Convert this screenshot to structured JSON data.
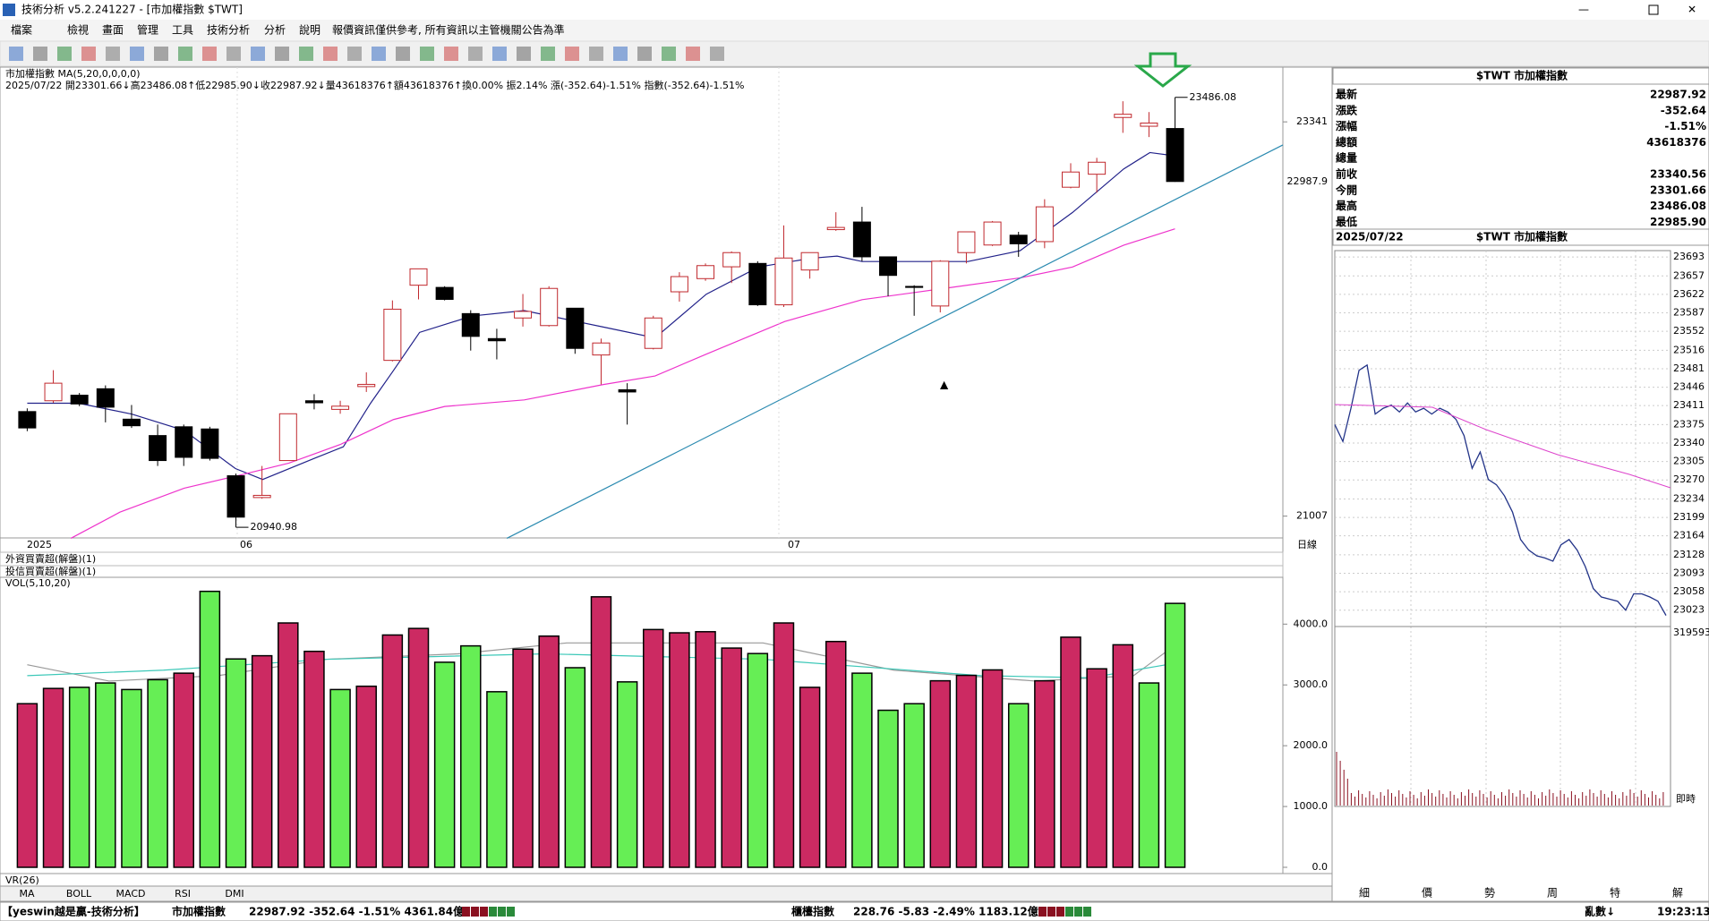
{
  "window": {
    "title": "技術分析 v5.2.241227 - [市加權指數 $TWT]"
  },
  "menu": [
    "檔案",
    "檢視",
    "畫面",
    "管理",
    "工具",
    "技術分析",
    "分析",
    "說明",
    "報價資訊僅供參考, 所有資訊以主管機關公告為準"
  ],
  "chart_data": {
    "type": "candlestick",
    "title": "市加權指數 MA(5,20,0,0,0,0)",
    "subtitle": "2025/07/22 開23301.66↓高23486.08↑低22985.90↓收22987.92↓量43618376↑額43618376↑換0.00% 振2.14% 漲(-352.64)-1.51% 指數(-352.64)-1.51%",
    "ylim": [
      20878,
      23612
    ],
    "yticks": [
      21007,
      23341
    ],
    "last_label": "22987.9",
    "x_labels": [
      "2025",
      "06",
      "07"
    ],
    "period": "日線",
    "annotations": [
      "23486.08",
      "20940.98"
    ],
    "candles": [
      {
        "open": 21626,
        "close": 21529,
        "high": 21645,
        "low": 21510
      },
      {
        "open": 21690,
        "close": 21794,
        "high": 21871,
        "low": 21678
      },
      {
        "open": 21723,
        "close": 21671,
        "high": 21736,
        "low": 21658
      },
      {
        "open": 21761,
        "close": 21652,
        "high": 21781,
        "low": 21562
      },
      {
        "open": 21581,
        "close": 21542,
        "high": 21665,
        "low": 21529
      },
      {
        "open": 21484,
        "close": 21336,
        "high": 21549,
        "low": 21304
      },
      {
        "open": 21536,
        "close": 21355,
        "high": 21549,
        "low": 21304
      },
      {
        "open": 21523,
        "close": 21349,
        "high": 21536,
        "low": 21336
      },
      {
        "open": 21246,
        "close": 21001,
        "high": 21259,
        "low": 20940.98
      },
      {
        "open": 21117,
        "close": 21130,
        "high": 21304,
        "low": 21110
      },
      {
        "open": 21336,
        "close": 21613,
        "high": 21613,
        "low": 21336
      },
      {
        "open": 21690,
        "close": 21678,
        "high": 21729,
        "low": 21639
      },
      {
        "open": 21639,
        "close": 21658,
        "high": 21690,
        "low": 21613
      },
      {
        "open": 21774,
        "close": 21787,
        "high": 21858,
        "low": 21742
      },
      {
        "open": 21929,
        "close": 22232,
        "high": 22284,
        "low": 21923
      },
      {
        "open": 22374,
        "close": 22471,
        "high": 22471,
        "low": 22290
      },
      {
        "open": 22361,
        "close": 22290,
        "high": 22368,
        "low": 22284
      },
      {
        "open": 22206,
        "close": 22071,
        "high": 22226,
        "low": 21987
      },
      {
        "open": 22058,
        "close": 22045,
        "high": 22116,
        "low": 21935
      },
      {
        "open": 22180,
        "close": 22219,
        "high": 22322,
        "low": 22129
      },
      {
        "open": 22135,
        "close": 22355,
        "high": 22368,
        "low": 22129
      },
      {
        "open": 22238,
        "close": 22000,
        "high": 22238,
        "low": 21968
      },
      {
        "open": 21961,
        "close": 22032,
        "high": 22058,
        "low": 21787
      },
      {
        "open": 21755,
        "close": 21742,
        "high": 21794,
        "low": 21549
      },
      {
        "open": 22000,
        "close": 22180,
        "high": 22193,
        "low": 21994
      },
      {
        "open": 22335,
        "close": 22425,
        "high": 22451,
        "low": 22277
      },
      {
        "open": 22413,
        "close": 22490,
        "high": 22503,
        "low": 22400
      },
      {
        "open": 22483,
        "close": 22567,
        "high": 22574,
        "low": 22387
      },
      {
        "open": 22503,
        "close": 22258,
        "high": 22516,
        "low": 22251
      },
      {
        "open": 22258,
        "close": 22535,
        "high": 22728,
        "low": 22245
      },
      {
        "open": 22464,
        "close": 22567,
        "high": 22567,
        "low": 22413
      },
      {
        "open": 22703,
        "close": 22716,
        "high": 22806,
        "low": 22696
      },
      {
        "open": 22748,
        "close": 22542,
        "high": 22838,
        "low": 22516
      },
      {
        "open": 22542,
        "close": 22432,
        "high": 22542,
        "low": 22309
      },
      {
        "open": 22367,
        "close": 22361,
        "high": 22374,
        "low": 22193
      },
      {
        "open": 22251,
        "close": 22516,
        "high": 22522,
        "low": 22213
      },
      {
        "open": 22567,
        "close": 22690,
        "high": 22690,
        "low": 22503
      },
      {
        "open": 22612,
        "close": 22748,
        "high": 22754,
        "low": 22606
      },
      {
        "open": 22670,
        "close": 22619,
        "high": 22690,
        "low": 22542
      },
      {
        "open": 22632,
        "close": 22838,
        "high": 22883,
        "low": 22593
      },
      {
        "open": 22954,
        "close": 23044,
        "high": 23096,
        "low": 22948
      },
      {
        "open": 23031,
        "close": 23102,
        "high": 23128,
        "low": 22922
      },
      {
        "open": 23367,
        "close": 23386,
        "high": 23463,
        "low": 23276
      },
      {
        "open": 23315,
        "close": 23334,
        "high": 23399,
        "low": 23251
      },
      {
        "open": 23301.66,
        "close": 22987.92,
        "high": 23486.08,
        "low": 22985.9
      }
    ],
    "up_color": "#c0282d",
    "down_color": "#000000"
  },
  "indicators": [
    "外資買賣超(解盤)(1)",
    "投信買賣超(解盤)(1)"
  ],
  "volume": {
    "title": "VOL(5,10,20)",
    "ylim": [
      0,
      4770
    ],
    "yticks": [
      {
        "value": 0,
        "label": "0.0"
      },
      {
        "value": 1000,
        "label": "1000.0"
      },
      {
        "value": 2000,
        "label": "2000.0"
      },
      {
        "value": 3000,
        "label": "3000.0"
      },
      {
        "value": 4000,
        "label": "4000.0"
      }
    ],
    "values": [
      2691,
      2942,
      2960,
      3032,
      2924,
      3086,
      3193,
      4539,
      3427,
      3480,
      4019,
      3552,
      2924,
      2978,
      3821,
      3929,
      3373,
      3642,
      2888,
      3588,
      3803,
      3283,
      4449,
      3050,
      3911,
      3857,
      3875,
      3606,
      3516,
      4019,
      2960,
      3714,
      3193,
      2583,
      2691,
      3068,
      3157,
      3247,
      2691,
      3068,
      3785,
      3265,
      3660,
      3032,
      4341
    ],
    "colors": [
      "#cc2a62",
      "#cc2a62",
      "#66ee55",
      "#66ee55",
      "#66ee55",
      "#66ee55",
      "#cc2a62",
      "#66ee55",
      "#66ee55",
      "#cc2a62",
      "#cc2a62",
      "#cc2a62",
      "#66ee55",
      "#cc2a62",
      "#cc2a62",
      "#cc2a62",
      "#66ee55",
      "#66ee55",
      "#66ee55",
      "#cc2a62",
      "#cc2a62",
      "#66ee55",
      "#cc2a62",
      "#66ee55",
      "#cc2a62",
      "#cc2a62",
      "#cc2a62",
      "#cc2a62",
      "#66ee55",
      "#cc2a62",
      "#cc2a62",
      "#cc2a62",
      "#66ee55",
      "#66ee55",
      "#66ee55",
      "#cc2a62",
      "#cc2a62",
      "#cc2a62",
      "#66ee55",
      "#cc2a62",
      "#cc2a62",
      "#cc2a62",
      "#cc2a62",
      "#66ee55",
      "#66ee55"
    ]
  },
  "vr_title": "VR(26)",
  "tabs": [
    "MA",
    "BOLL",
    "MACD",
    "RSI",
    "DMI"
  ],
  "quote": {
    "title": "$TWT 市加權指數",
    "rows": [
      {
        "label": "最新",
        "value": "22987.92"
      },
      {
        "label": "漲跌",
        "value": "-352.64"
      },
      {
        "label": "漲幅",
        "value": "-1.51%"
      },
      {
        "label": "總額",
        "value": "43618376"
      },
      {
        "label": "總量"
      },
      {
        "label": "前收",
        "value": "23340.56"
      },
      {
        "label": "今開",
        "value": "23301.66"
      },
      {
        "label": "最高",
        "value": "23486.08"
      },
      {
        "label": "最低",
        "value": "22985.90"
      }
    ]
  },
  "intraday": {
    "date": "2025/07/22",
    "title": "$TWT 市加權指數",
    "ylim": [
      22992,
      23705
    ],
    "yticks": [
      23693,
      23657,
      23622,
      23587,
      23552,
      23516,
      23481,
      23446,
      23411,
      23375,
      23340,
      23305,
      23270,
      23234,
      23199,
      23164,
      23128,
      23093,
      23058,
      23023
    ],
    "values": [
      23375,
      23343,
      23406,
      23478,
      23488,
      23395,
      23406,
      23412,
      23399,
      23416,
      23399,
      23406,
      23395,
      23406,
      23399,
      23385,
      23354,
      23292,
      23323,
      23271,
      23261,
      23240,
      23209,
      23157,
      23137,
      23126,
      23122,
      23116,
      23147,
      23157,
      23137,
      23106,
      23064,
      23048,
      23044,
      23040,
      23023,
      23054,
      23054,
      23048,
      23040,
      23013
    ],
    "volume_label": "319593",
    "realtime": "即時"
  },
  "bottom_tabs": [
    "細",
    "價",
    "勢",
    "周",
    "特",
    "解"
  ],
  "status": {
    "brand": "【yeswin越是贏-技術分析】",
    "index1": "市加權指數",
    "quote1": "22987.92 -352.64 -1.51% 4361.84億",
    "index2": "櫃檯指數",
    "quote2": "228.76 -5.83 -2.49% 1183.12億",
    "mode": "亂數↓",
    "time": "19:23:13"
  }
}
